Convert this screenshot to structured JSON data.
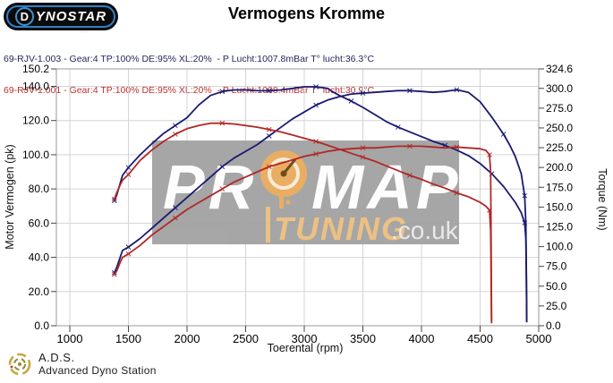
{
  "header": {
    "logo_d": "D",
    "logo_rest": "YNOSTAR",
    "logo_tagline": "....",
    "title": "Vermogens Kromme"
  },
  "legend": {
    "position": "top-left",
    "runs": [
      {
        "id": "69-RJV-1.003",
        "label": "69-RJV-1.003 - Gear:4 TP:100% DE:95% XL:20%  - P Lucht:1007.8mBar T° lucht:36.3°C",
        "color": "#26265e"
      },
      {
        "id": "69-RJV-1.001",
        "label": "69-RJV-1.001 - Gear:4 TP:100% DE:95% XL:20%  - P Lucht:1008.4mBar T° lucht:30.9°C",
        "color": "#c03030"
      }
    ]
  },
  "watermark": {
    "brand_pr": "PR",
    "brand_map": "MAP",
    "sub_brand": "TUNING",
    "sub_domain": ".co.uk",
    "box_color": "#a2a2a2",
    "letter_color": "#fdfdfd",
    "orange_color": "#e9a95c"
  },
  "footer": {
    "abbr": "A.D.S.",
    "name": "Advanced Dyno Station"
  },
  "chart_data": {
    "type": "line",
    "title": "Vermogens Kromme",
    "xlabel": "Toerental (rpm)",
    "ylabel_left": "Motor Vermogen (pk)",
    "ylabel_right": "Torque (Nm)",
    "xlim": [
      1000,
      5000
    ],
    "ylim_left": [
      0,
      150.2
    ],
    "ylim_right": [
      0,
      324.6
    ],
    "x_ticks": [
      1000,
      1500,
      2000,
      2500,
      3000,
      3500,
      4000,
      4500,
      5000
    ],
    "y_left_ticks": [
      0,
      20,
      40,
      60,
      80,
      100,
      120,
      140,
      150.2
    ],
    "y_right_ticks": [
      0,
      25,
      50,
      75,
      100,
      125,
      150,
      175,
      200,
      225,
      250,
      275,
      300,
      324.6
    ],
    "grid": true,
    "series": [
      {
        "name": "69-RJV-1.003 vermogen (pk)",
        "axis": "left",
        "color": "#1a1a72",
        "points": [
          [
            1380,
            31
          ],
          [
            1400,
            34
          ],
          [
            1430,
            40
          ],
          [
            1450,
            44
          ],
          [
            1500,
            46
          ],
          [
            1600,
            51
          ],
          [
            1700,
            57
          ],
          [
            1800,
            63
          ],
          [
            1900,
            69
          ],
          [
            2000,
            75
          ],
          [
            2100,
            81
          ],
          [
            2200,
            87
          ],
          [
            2300,
            93
          ],
          [
            2400,
            98
          ],
          [
            2500,
            102
          ],
          [
            2600,
            106
          ],
          [
            2700,
            111
          ],
          [
            2800,
            116
          ],
          [
            2900,
            121
          ],
          [
            3000,
            125
          ],
          [
            3100,
            129
          ],
          [
            3200,
            132
          ],
          [
            3300,
            134
          ],
          [
            3400,
            135.5
          ],
          [
            3500,
            136
          ],
          [
            3600,
            136.5
          ],
          [
            3700,
            137
          ],
          [
            3800,
            137.5
          ],
          [
            3900,
            137.5
          ],
          [
            4000,
            137
          ],
          [
            4100,
            136.5
          ],
          [
            4200,
            137
          ],
          [
            4300,
            138
          ],
          [
            4400,
            136.5
          ],
          [
            4500,
            131
          ],
          [
            4600,
            122
          ],
          [
            4700,
            112
          ],
          [
            4750,
            106
          ],
          [
            4800,
            99
          ],
          [
            4850,
            89
          ],
          [
            4880,
            76
          ],
          [
            4890,
            60
          ],
          [
            4895,
            30
          ],
          [
            4898,
            2
          ]
        ]
      },
      {
        "name": "69-RJV-1.003 koppel (Nm)",
        "axis": "right",
        "color": "#1a1a72",
        "points": [
          [
            1380,
            158
          ],
          [
            1400,
            165
          ],
          [
            1430,
            180
          ],
          [
            1450,
            190
          ],
          [
            1500,
            200
          ],
          [
            1600,
            216
          ],
          [
            1700,
            230
          ],
          [
            1800,
            243
          ],
          [
            1900,
            253
          ],
          [
            2000,
            263
          ],
          [
            2100,
            279
          ],
          [
            2200,
            291
          ],
          [
            2300,
            296
          ],
          [
            2400,
            298
          ],
          [
            2500,
            298
          ],
          [
            2600,
            297
          ],
          [
            2700,
            297
          ],
          [
            2800,
            298
          ],
          [
            2900,
            300
          ],
          [
            3000,
            302
          ],
          [
            3100,
            302
          ],
          [
            3200,
            300
          ],
          [
            3250,
            295
          ],
          [
            3300,
            291
          ],
          [
            3400,
            284
          ],
          [
            3500,
            276
          ],
          [
            3600,
            267
          ],
          [
            3700,
            258
          ],
          [
            3800,
            251
          ],
          [
            3900,
            245
          ],
          [
            4000,
            239
          ],
          [
            4100,
            233
          ],
          [
            4200,
            228
          ],
          [
            4300,
            222
          ],
          [
            4400,
            215
          ],
          [
            4500,
            205
          ],
          [
            4600,
            192
          ],
          [
            4700,
            176
          ],
          [
            4800,
            156
          ],
          [
            4850,
            143
          ],
          [
            4880,
            130
          ],
          [
            4890,
            110
          ],
          [
            4895,
            60
          ],
          [
            4898,
            5
          ]
        ]
      },
      {
        "name": "69-RJV-1.001 vermogen (pk)",
        "axis": "left",
        "color": "#b02828",
        "points": [
          [
            1380,
            30
          ],
          [
            1400,
            32
          ],
          [
            1430,
            37
          ],
          [
            1450,
            40
          ],
          [
            1500,
            42
          ],
          [
            1600,
            47
          ],
          [
            1700,
            53
          ],
          [
            1800,
            58
          ],
          [
            1900,
            63
          ],
          [
            2000,
            68
          ],
          [
            2100,
            72
          ],
          [
            2200,
            76
          ],
          [
            2300,
            80
          ],
          [
            2400,
            84
          ],
          [
            2500,
            87
          ],
          [
            2600,
            90
          ],
          [
            2700,
            93
          ],
          [
            2800,
            95
          ],
          [
            2900,
            97
          ],
          [
            3000,
            99
          ],
          [
            3100,
            100.5
          ],
          [
            3200,
            102
          ],
          [
            3300,
            103
          ],
          [
            3400,
            103.5
          ],
          [
            3500,
            104
          ],
          [
            3600,
            104
          ],
          [
            3700,
            104.5
          ],
          [
            3800,
            105
          ],
          [
            3900,
            105
          ],
          [
            4000,
            105
          ],
          [
            4100,
            104.5
          ],
          [
            4200,
            104
          ],
          [
            4300,
            104.5
          ],
          [
            4400,
            104
          ],
          [
            4500,
            103.5
          ],
          [
            4550,
            102.5
          ],
          [
            4580,
            100
          ],
          [
            4590,
            90
          ],
          [
            4595,
            40
          ],
          [
            4598,
            3
          ]
        ]
      },
      {
        "name": "69-RJV-1.001 koppel (Nm)",
        "axis": "right",
        "color": "#b02828",
        "points": [
          [
            1380,
            160
          ],
          [
            1400,
            168
          ],
          [
            1430,
            178
          ],
          [
            1450,
            184
          ],
          [
            1500,
            191
          ],
          [
            1600,
            209
          ],
          [
            1700,
            222
          ],
          [
            1800,
            233
          ],
          [
            1900,
            242
          ],
          [
            2000,
            249
          ],
          [
            2100,
            253
          ],
          [
            2200,
            256
          ],
          [
            2300,
            256
          ],
          [
            2400,
            255
          ],
          [
            2500,
            253
          ],
          [
            2600,
            251
          ],
          [
            2700,
            248
          ],
          [
            2800,
            245
          ],
          [
            2900,
            241
          ],
          [
            3000,
            237
          ],
          [
            3100,
            233
          ],
          [
            3200,
            228
          ],
          [
            3300,
            223
          ],
          [
            3400,
            218
          ],
          [
            3500,
            213
          ],
          [
            3600,
            208
          ],
          [
            3700,
            202
          ],
          [
            3800,
            196
          ],
          [
            3900,
            190
          ],
          [
            4000,
            185
          ],
          [
            4100,
            179
          ],
          [
            4200,
            174
          ],
          [
            4300,
            168
          ],
          [
            4400,
            163
          ],
          [
            4500,
            156
          ],
          [
            4550,
            151
          ],
          [
            4580,
            146
          ],
          [
            4590,
            120
          ],
          [
            4595,
            50
          ],
          [
            4598,
            3
          ]
        ]
      }
    ]
  }
}
